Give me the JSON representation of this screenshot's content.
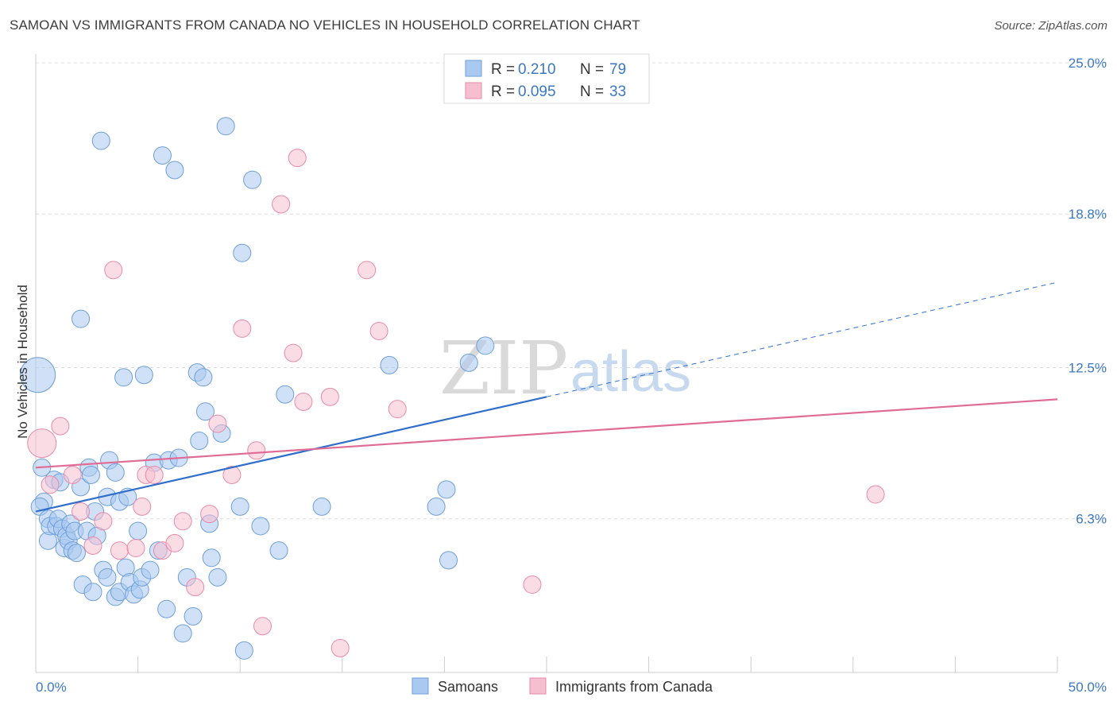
{
  "title": "SAMOAN VS IMMIGRANTS FROM CANADA NO VEHICLES IN HOUSEHOLD CORRELATION CHART",
  "source": "Source: ZipAtlas.com",
  "watermark": {
    "zip": "ZIP",
    "atlas": "atlas"
  },
  "chart_data": {
    "type": "scatter",
    "ylabel": "No Vehicles in Household",
    "xlim": [
      0,
      50
    ],
    "ylim": [
      0,
      25
    ],
    "x_tick_labels": [
      {
        "v": 0,
        "label": "0.0%"
      },
      {
        "v": 50,
        "label": "50.0%"
      }
    ],
    "y_tick_labels": [
      {
        "v": 6.3,
        "label": "6.3%"
      },
      {
        "v": 12.5,
        "label": "12.5%"
      },
      {
        "v": 18.8,
        "label": "18.8%"
      },
      {
        "v": 25.0,
        "label": "25.0%"
      }
    ],
    "grid": "horizontal dashed",
    "legend_position": "top-center",
    "series": [
      {
        "name": "Samoans",
        "color": "#a9c9f0",
        "edge": "#6e9fd8",
        "line_color": "#2f6fcb",
        "R": "0.210",
        "N": "79",
        "trend": {
          "x0": 0,
          "y0": 6.6,
          "x1": 25,
          "y1": 11.3,
          "dash_to_x": 50,
          "dash_to_y": 16.0
        },
        "points": [
          [
            0.1,
            12.2,
            22
          ],
          [
            0.3,
            8.4,
            11
          ],
          [
            0.4,
            7.0,
            11
          ],
          [
            0.2,
            6.8,
            11
          ],
          [
            0.6,
            6.3,
            11
          ],
          [
            0.6,
            5.4,
            11
          ],
          [
            0.7,
            6.0,
            11
          ],
          [
            0.9,
            7.9,
            11
          ],
          [
            1.0,
            6.0,
            11
          ],
          [
            1.1,
            6.3,
            11
          ],
          [
            1.2,
            7.8,
            11
          ],
          [
            1.3,
            5.9,
            11
          ],
          [
            1.4,
            5.1,
            11
          ],
          [
            1.5,
            5.6,
            11
          ],
          [
            1.6,
            5.4,
            11
          ],
          [
            1.7,
            6.1,
            11
          ],
          [
            1.8,
            5.0,
            11
          ],
          [
            1.9,
            5.8,
            11
          ],
          [
            2.0,
            4.9,
            11
          ],
          [
            2.2,
            14.5,
            11
          ],
          [
            2.2,
            7.6,
            11
          ],
          [
            2.3,
            3.6,
            11
          ],
          [
            2.5,
            5.8,
            11
          ],
          [
            2.6,
            8.4,
            11
          ],
          [
            2.7,
            8.1,
            11
          ],
          [
            2.8,
            3.3,
            11
          ],
          [
            2.9,
            6.6,
            11
          ],
          [
            3.0,
            5.6,
            11
          ],
          [
            3.2,
            21.8,
            11
          ],
          [
            3.3,
            4.2,
            11
          ],
          [
            3.5,
            7.2,
            11
          ],
          [
            3.5,
            3.9,
            11
          ],
          [
            3.6,
            8.7,
            11
          ],
          [
            3.9,
            8.2,
            11
          ],
          [
            3.9,
            3.1,
            11
          ],
          [
            4.1,
            3.3,
            11
          ],
          [
            4.1,
            7.0,
            11
          ],
          [
            4.3,
            12.1,
            11
          ],
          [
            4.4,
            4.3,
            11
          ],
          [
            4.5,
            7.2,
            11
          ],
          [
            4.6,
            3.7,
            11
          ],
          [
            4.8,
            3.2,
            11
          ],
          [
            5.0,
            5.8,
            11
          ],
          [
            5.1,
            3.4,
            11
          ],
          [
            5.2,
            3.9,
            11
          ],
          [
            5.3,
            12.2,
            11
          ],
          [
            5.6,
            4.2,
            11
          ],
          [
            5.8,
            8.6,
            11
          ],
          [
            6.0,
            5.0,
            11
          ],
          [
            6.2,
            21.2,
            11
          ],
          [
            6.4,
            2.6,
            11
          ],
          [
            6.5,
            8.7,
            11
          ],
          [
            6.8,
            20.6,
            11
          ],
          [
            7.0,
            8.8,
            11
          ],
          [
            7.2,
            1.6,
            11
          ],
          [
            7.4,
            3.9,
            11
          ],
          [
            7.7,
            2.3,
            11
          ],
          [
            7.9,
            12.3,
            11
          ],
          [
            8.0,
            9.5,
            11
          ],
          [
            8.2,
            12.1,
            11
          ],
          [
            8.3,
            10.7,
            11
          ],
          [
            8.5,
            6.1,
            11
          ],
          [
            8.6,
            4.7,
            11
          ],
          [
            8.9,
            3.9,
            11
          ],
          [
            9.1,
            9.8,
            11
          ],
          [
            9.3,
            22.4,
            11
          ],
          [
            10.0,
            6.8,
            11
          ],
          [
            10.1,
            17.2,
            11
          ],
          [
            10.2,
            0.9,
            11
          ],
          [
            10.6,
            20.2,
            11
          ],
          [
            11.0,
            6.0,
            11
          ],
          [
            11.9,
            5.0,
            11
          ],
          [
            12.2,
            11.4,
            11
          ],
          [
            14.0,
            6.8,
            11
          ],
          [
            17.3,
            12.6,
            11
          ],
          [
            19.6,
            6.8,
            11
          ],
          [
            20.1,
            7.5,
            11
          ],
          [
            20.2,
            4.6,
            11
          ],
          [
            21.2,
            12.7,
            11
          ],
          [
            22.0,
            13.4,
            11
          ]
        ]
      },
      {
        "name": "Immigrants from Canada",
        "color": "#f6bfd0",
        "edge": "#e88aaa",
        "line_color": "#e06c95",
        "R": "0.095",
        "N": "33",
        "trend": {
          "x0": 0,
          "y0": 8.4,
          "x1": 50,
          "y1": 11.2
        },
        "points": [
          [
            0.3,
            9.4,
            18
          ],
          [
            0.7,
            7.7,
            11
          ],
          [
            1.2,
            10.1,
            11
          ],
          [
            1.8,
            8.1,
            11
          ],
          [
            2.2,
            6.6,
            11
          ],
          [
            2.8,
            5.2,
            11
          ],
          [
            3.3,
            6.2,
            11
          ],
          [
            3.8,
            16.5,
            11
          ],
          [
            4.1,
            5.0,
            11
          ],
          [
            4.9,
            5.1,
            11
          ],
          [
            5.2,
            6.8,
            11
          ],
          [
            5.4,
            8.1,
            11
          ],
          [
            5.8,
            8.1,
            11
          ],
          [
            6.2,
            5.0,
            11
          ],
          [
            6.8,
            5.3,
            11
          ],
          [
            7.2,
            6.2,
            11
          ],
          [
            7.8,
            3.5,
            11
          ],
          [
            8.5,
            6.5,
            11
          ],
          [
            8.9,
            10.2,
            11
          ],
          [
            9.6,
            8.1,
            11
          ],
          [
            10.1,
            14.1,
            11
          ],
          [
            10.8,
            9.1,
            11
          ],
          [
            11.1,
            1.9,
            11
          ],
          [
            12.0,
            19.2,
            11
          ],
          [
            12.6,
            13.1,
            11
          ],
          [
            12.8,
            21.1,
            11
          ],
          [
            13.1,
            11.1,
            11
          ],
          [
            14.4,
            11.3,
            11
          ],
          [
            14.9,
            1.0,
            11
          ],
          [
            16.2,
            16.5,
            11
          ],
          [
            16.8,
            14.0,
            11
          ],
          [
            17.7,
            10.8,
            11
          ],
          [
            24.3,
            3.6,
            11
          ],
          [
            41.1,
            7.3,
            11
          ]
        ]
      }
    ]
  }
}
